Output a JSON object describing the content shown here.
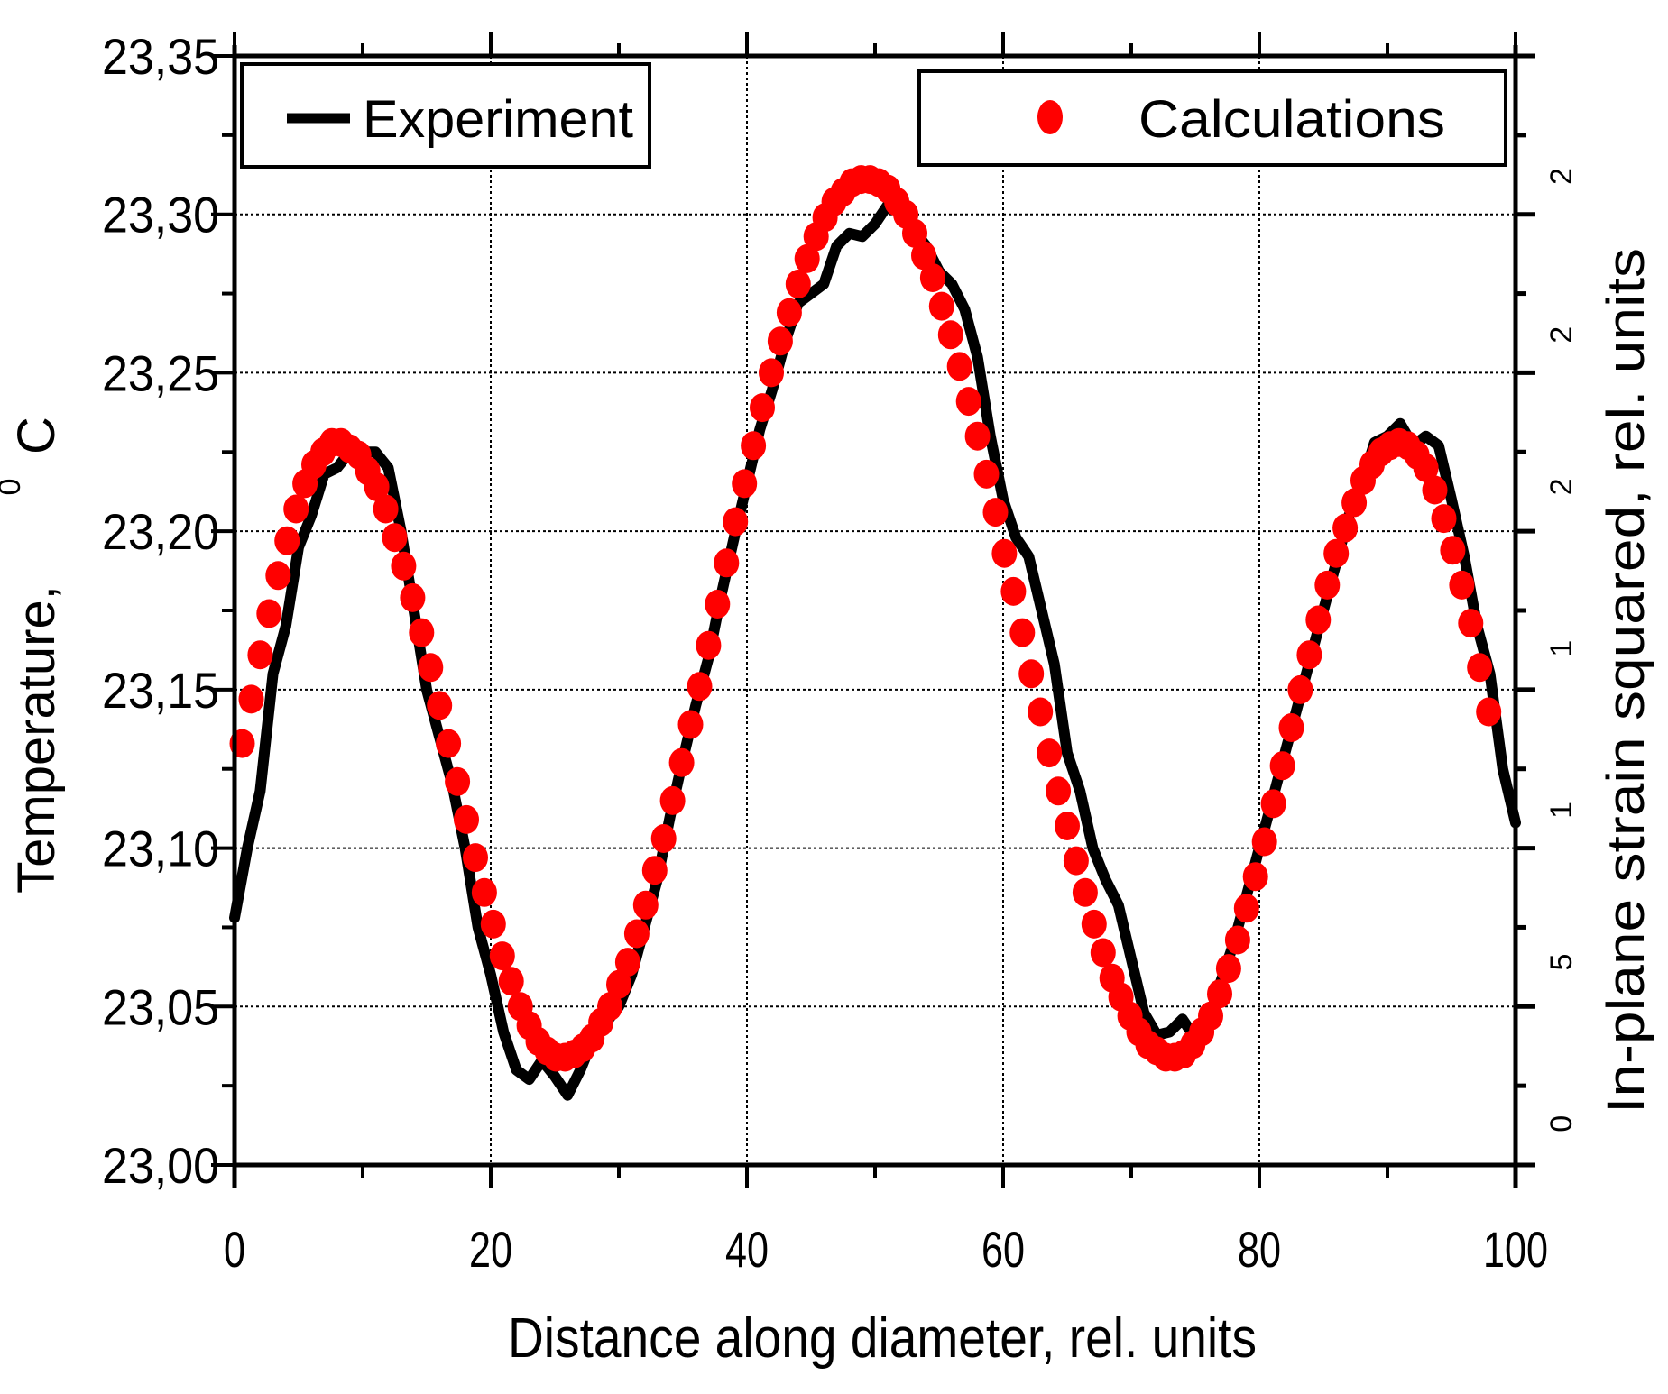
{
  "chart_data": {
    "type": "line+scatter",
    "title": "",
    "xlabel": "Distance along diameter, rel. units",
    "ylabel": "Temperature, ⁰ C",
    "ylabel_main": "Temperature,",
    "ylabel_sup": "0",
    "ylabel_unit": "C",
    "y2label": "In-plane strain squared, rel. units",
    "xlim": [
      0,
      100
    ],
    "ylim": [
      23.0,
      23.35
    ],
    "grid": true,
    "x_ticks": [
      0,
      20,
      40,
      60,
      80,
      100
    ],
    "x_tick_labels": [
      "0",
      "20",
      "40",
      "60",
      "80",
      "100"
    ],
    "x_minor_ticks": [
      10,
      30,
      50,
      70,
      90
    ],
    "y_ticks": [
      23.0,
      23.05,
      23.1,
      23.15,
      23.2,
      23.25,
      23.3,
      23.35
    ],
    "y_tick_labels": [
      "23,00",
      "23,05",
      "23,10",
      "23,15",
      "23,20",
      "23,25",
      "23,30",
      "23,35"
    ],
    "y_minor_ticks": [
      23.025,
      23.075,
      23.125,
      23.175,
      23.225,
      23.275,
      23.325
    ],
    "y2_tick_label_fragments": [
      {
        "text": "2",
        "y": 23.312
      },
      {
        "text": "2",
        "y": 23.262
      },
      {
        "text": "2",
        "y": 23.214
      },
      {
        "text": "1",
        "y": 23.163
      },
      {
        "text": "1",
        "y": 23.112
      },
      {
        "text": "5",
        "y": 23.064
      },
      {
        "text": "0",
        "y": 23.013
      }
    ],
    "legend": [
      {
        "label": "Experiment",
        "style": "line",
        "color": "#000000",
        "position": "top-left"
      },
      {
        "label": "Calculations",
        "style": "marker",
        "color": "#ff0000",
        "position": "top-right"
      }
    ],
    "series": [
      {
        "name": "Experiment",
        "style": "line",
        "color": "#000000",
        "x": [
          0,
          1,
          2,
          3,
          4,
          5,
          6,
          7,
          8,
          9,
          10,
          11,
          12,
          13,
          14,
          15,
          16,
          17,
          18,
          19,
          20,
          21,
          22,
          23,
          24,
          25,
          26,
          27,
          28,
          29,
          30,
          31,
          32,
          33,
          34,
          35,
          36,
          37,
          38,
          39,
          40,
          41,
          42,
          43,
          44,
          45,
          46,
          47,
          48,
          49,
          50,
          51,
          52,
          53,
          54,
          55,
          56,
          57,
          58,
          59,
          60,
          61,
          62,
          63,
          64,
          65,
          66,
          67,
          68,
          69,
          70,
          71,
          72,
          73,
          74,
          75,
          76,
          77,
          78,
          79,
          80,
          81,
          82,
          83,
          84,
          85,
          86,
          87,
          88,
          89,
          90,
          91,
          92,
          93,
          94,
          95,
          96,
          97,
          98,
          99,
          100
        ],
        "y": [
          23.078,
          23.1,
          23.118,
          23.155,
          23.17,
          23.195,
          23.205,
          23.218,
          23.22,
          23.225,
          23.225,
          23.225,
          23.22,
          23.2,
          23.175,
          23.15,
          23.135,
          23.12,
          23.1,
          23.075,
          23.06,
          23.042,
          23.03,
          23.027,
          23.033,
          23.028,
          23.022,
          23.03,
          23.04,
          23.045,
          23.05,
          23.06,
          23.075,
          23.09,
          23.11,
          23.128,
          23.145,
          23.16,
          23.18,
          23.198,
          23.215,
          23.232,
          23.245,
          23.26,
          23.272,
          23.275,
          23.278,
          23.29,
          23.294,
          23.293,
          23.297,
          23.303,
          23.302,
          23.295,
          23.29,
          23.282,
          23.278,
          23.27,
          23.255,
          23.23,
          23.21,
          23.198,
          23.192,
          23.175,
          23.158,
          23.13,
          23.118,
          23.1,
          23.09,
          23.082,
          23.065,
          23.048,
          23.041,
          23.042,
          23.046,
          23.04,
          23.045,
          23.058,
          23.07,
          23.085,
          23.1,
          23.115,
          23.13,
          23.145,
          23.16,
          23.175,
          23.19,
          23.205,
          23.215,
          23.228,
          23.23,
          23.234,
          23.227,
          23.23,
          23.227,
          23.21,
          23.192,
          23.17,
          23.155,
          23.125,
          23.108
        ]
      },
      {
        "name": "Calculations",
        "style": "marker",
        "marker": "circle",
        "color": "#ff0000",
        "x": [
          0.6,
          1.3,
          2.0,
          2.7,
          3.4,
          4.1,
          4.8,
          5.5,
          6.2,
          6.9,
          7.6,
          8.3,
          9.0,
          9.7,
          10.4,
          11.1,
          11.8,
          12.5,
          13.2,
          13.9,
          14.6,
          15.3,
          16.0,
          16.7,
          17.4,
          18.1,
          18.8,
          19.5,
          20.2,
          20.9,
          21.6,
          22.3,
          23.0,
          23.7,
          24.4,
          25.1,
          25.8,
          26.5,
          27.2,
          27.9,
          28.6,
          29.3,
          30.0,
          30.7,
          31.4,
          32.1,
          32.8,
          33.5,
          34.2,
          34.9,
          35.6,
          36.3,
          37.0,
          37.7,
          38.4,
          39.1,
          39.8,
          40.5,
          41.2,
          41.9,
          42.6,
          43.3,
          44.0,
          44.7,
          45.4,
          46.1,
          46.8,
          47.5,
          48.2,
          48.9,
          49.6,
          50.3,
          51.0,
          51.7,
          52.4,
          53.1,
          53.8,
          54.5,
          55.2,
          55.9,
          56.6,
          57.3,
          58.0,
          58.7,
          59.4,
          60.1,
          60.8,
          61.5,
          62.2,
          62.9,
          63.6,
          64.3,
          65.0,
          65.7,
          66.4,
          67.1,
          67.8,
          68.5,
          69.2,
          69.9,
          70.6,
          71.3,
          72.0,
          72.7,
          73.4,
          74.1,
          74.8,
          75.5,
          76.2,
          76.9,
          77.6,
          78.3,
          79.0,
          79.7,
          80.4,
          81.1,
          81.8,
          82.5,
          83.2,
          83.9,
          84.6,
          85.3,
          86.0,
          86.7,
          87.4,
          88.1,
          88.8,
          89.5,
          90.2,
          90.9,
          91.6,
          92.3,
          93.0,
          93.7,
          94.4,
          95.1,
          95.8,
          96.5,
          97.2,
          97.9
        ],
        "y": [
          23.133,
          23.147,
          23.161,
          23.174,
          23.186,
          23.197,
          23.207,
          23.215,
          23.221,
          23.225,
          23.228,
          23.228,
          23.226,
          23.224,
          23.219,
          23.214,
          23.207,
          23.198,
          23.189,
          23.179,
          23.168,
          23.157,
          23.145,
          23.133,
          23.121,
          23.109,
          23.097,
          23.086,
          23.076,
          23.066,
          23.058,
          23.05,
          23.044,
          23.039,
          23.036,
          23.034,
          23.034,
          23.035,
          23.037,
          23.04,
          23.045,
          23.05,
          23.057,
          23.064,
          23.073,
          23.082,
          23.093,
          23.103,
          23.115,
          23.127,
          23.139,
          23.151,
          23.164,
          23.177,
          23.19,
          23.203,
          23.215,
          23.227,
          23.239,
          23.25,
          23.26,
          23.269,
          23.278,
          23.286,
          23.293,
          23.299,
          23.304,
          23.307,
          23.31,
          23.311,
          23.311,
          23.31,
          23.308,
          23.304,
          23.3,
          23.294,
          23.287,
          23.28,
          23.271,
          23.262,
          23.252,
          23.241,
          23.23,
          23.218,
          23.206,
          23.193,
          23.181,
          23.168,
          23.155,
          23.143,
          23.13,
          23.118,
          23.107,
          23.096,
          23.086,
          23.076,
          23.067,
          23.059,
          23.053,
          23.047,
          23.042,
          23.038,
          23.036,
          23.034,
          23.034,
          23.035,
          23.038,
          23.042,
          23.047,
          23.054,
          23.062,
          23.071,
          23.081,
          23.091,
          23.102,
          23.114,
          23.126,
          23.138,
          23.15,
          23.161,
          23.172,
          23.183,
          23.193,
          23.201,
          23.209,
          23.216,
          23.221,
          23.225,
          23.227,
          23.228,
          23.227,
          23.224,
          23.22,
          23.213,
          23.204,
          23.194,
          23.183,
          23.171,
          23.157,
          23.143
        ]
      }
    ]
  }
}
